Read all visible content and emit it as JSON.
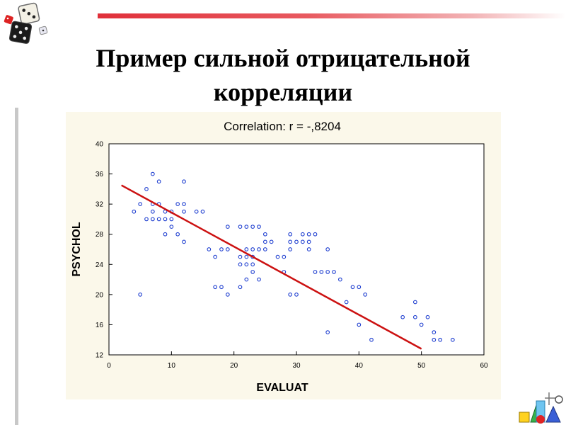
{
  "slide": {
    "title_line1": "Пример сильной отрицательной",
    "title_line2": "корреляции"
  },
  "colors": {
    "accent_bar": "#e0303a",
    "chart_background": "#fbf8ea",
    "points": "#1f3fd0",
    "fit_line": "#cc1111"
  },
  "icons": [
    "dice-icon",
    "geometric-shapes-icon"
  ],
  "chart_data": {
    "type": "scatter",
    "title": "Correlation: r = -,8204",
    "xlabel": "EVALUAT",
    "ylabel": "PSYCHOL",
    "xlim": [
      0,
      60
    ],
    "ylim": [
      12,
      40
    ],
    "x_ticks": [
      0,
      10,
      20,
      30,
      40,
      50,
      60
    ],
    "y_ticks": [
      12,
      16,
      20,
      24,
      28,
      32,
      36,
      40
    ],
    "grid": false,
    "points": [
      [
        4,
        31
      ],
      [
        5,
        32
      ],
      [
        5,
        20
      ],
      [
        6,
        34
      ],
      [
        6,
        30
      ],
      [
        7,
        36
      ],
      [
        7,
        32
      ],
      [
        7,
        31
      ],
      [
        7,
        30
      ],
      [
        8,
        35
      ],
      [
        8,
        32
      ],
      [
        8,
        30
      ],
      [
        9,
        31
      ],
      [
        9,
        30
      ],
      [
        9,
        28
      ],
      [
        10,
        31
      ],
      [
        10,
        30
      ],
      [
        10,
        29
      ],
      [
        11,
        32
      ],
      [
        11,
        28
      ],
      [
        12,
        35
      ],
      [
        12,
        32
      ],
      [
        12,
        31
      ],
      [
        12,
        27
      ],
      [
        14,
        31
      ],
      [
        15,
        31
      ],
      [
        16,
        26
      ],
      [
        17,
        25
      ],
      [
        17,
        21
      ],
      [
        18,
        26
      ],
      [
        18,
        21
      ],
      [
        19,
        29
      ],
      [
        19,
        26
      ],
      [
        19,
        20
      ],
      [
        21,
        29
      ],
      [
        21,
        25
      ],
      [
        21,
        24
      ],
      [
        21,
        21
      ],
      [
        22,
        29
      ],
      [
        22,
        26
      ],
      [
        22,
        25
      ],
      [
        22,
        24
      ],
      [
        22,
        22
      ],
      [
        23,
        29
      ],
      [
        23,
        26
      ],
      [
        23,
        25
      ],
      [
        23,
        24
      ],
      [
        23,
        23
      ],
      [
        24,
        29
      ],
      [
        24,
        26
      ],
      [
        24,
        22
      ],
      [
        25,
        28
      ],
      [
        25,
        27
      ],
      [
        25,
        26
      ],
      [
        26,
        27
      ],
      [
        27,
        25
      ],
      [
        28,
        25
      ],
      [
        28,
        23
      ],
      [
        29,
        28
      ],
      [
        29,
        27
      ],
      [
        29,
        26
      ],
      [
        29,
        20
      ],
      [
        30,
        27
      ],
      [
        30,
        20
      ],
      [
        31,
        28
      ],
      [
        31,
        27
      ],
      [
        32,
        28
      ],
      [
        32,
        27
      ],
      [
        32,
        26
      ],
      [
        33,
        28
      ],
      [
        33,
        23
      ],
      [
        34,
        23
      ],
      [
        35,
        26
      ],
      [
        35,
        23
      ],
      [
        35,
        15
      ],
      [
        36,
        23
      ],
      [
        37,
        22
      ],
      [
        38,
        19
      ],
      [
        39,
        21
      ],
      [
        40,
        21
      ],
      [
        40,
        16
      ],
      [
        41,
        20
      ],
      [
        42,
        14
      ],
      [
        47,
        17
      ],
      [
        49,
        19
      ],
      [
        49,
        17
      ],
      [
        50,
        16
      ],
      [
        51,
        17
      ],
      [
        52,
        15
      ],
      [
        52,
        14
      ],
      [
        53,
        14
      ],
      [
        55,
        14
      ]
    ],
    "fit_line": {
      "x": [
        2,
        50
      ],
      "y": [
        34.5,
        12.8
      ]
    }
  }
}
